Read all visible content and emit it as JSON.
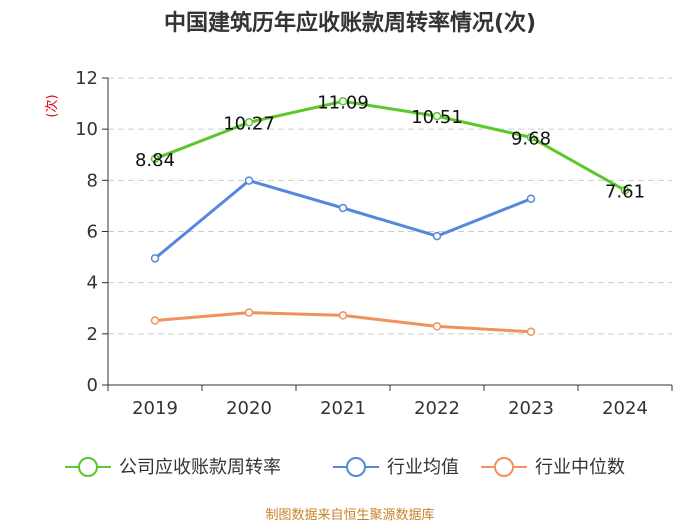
{
  "chart_data": {
    "type": "line",
    "title": "中国建筑历年应收账款周转率情况(次)",
    "ylabel": "(次)",
    "xlabel": "",
    "categories": [
      "2019",
      "2020",
      "2021",
      "2022",
      "2023",
      "2024"
    ],
    "ylim": [
      0,
      12
    ],
    "yticks": [
      0,
      2,
      4,
      6,
      8,
      10,
      12
    ],
    "grid": true,
    "legend_position": "bottom",
    "series": [
      {
        "name": "公司应收账款周转率",
        "color": "#5cc72b",
        "values": [
          8.84,
          10.27,
          11.09,
          10.51,
          9.68,
          7.61
        ],
        "labels": [
          "8.84",
          "10.27",
          "11.09",
          "10.51",
          "9.68",
          "7.61"
        ]
      },
      {
        "name": "行业均值",
        "color": "#5587dd",
        "values": [
          4.95,
          7.99,
          6.92,
          5.82,
          7.28,
          null
        ]
      },
      {
        "name": "行业中位数",
        "color": "#f0925b",
        "values": [
          2.52,
          2.83,
          2.72,
          2.29,
          2.08,
          null
        ]
      }
    ],
    "source": "制图数据来自恒生聚源数据库"
  }
}
